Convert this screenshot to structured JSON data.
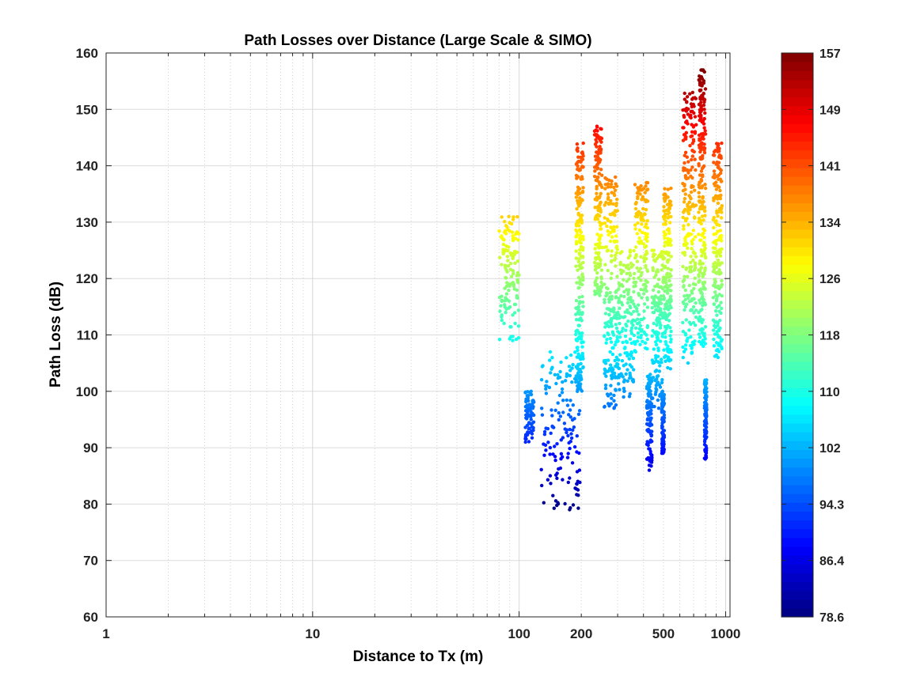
{
  "chart_data": {
    "type": "scatter",
    "title": "Path Losses over Distance (Large Scale & SIMO)",
    "xlabel": "Distance to Tx (m)",
    "ylabel": "Path Loss (dB)",
    "xscale": "log",
    "xlim": [
      1,
      1050
    ],
    "ylim": [
      60,
      160
    ],
    "grid": true,
    "x_ticks": [
      "1",
      "10",
      "100",
      "200",
      "500",
      "1000"
    ],
    "x_tick_values": [
      1,
      10,
      100,
      200,
      500,
      1000
    ],
    "y_ticks": [
      "60",
      "70",
      "80",
      "90",
      "100",
      "110",
      "120",
      "130",
      "140",
      "150",
      "160"
    ],
    "y_tick_values": [
      60,
      70,
      80,
      90,
      100,
      110,
      120,
      130,
      140,
      150,
      160
    ],
    "colorbar": {
      "colormap": "jet",
      "range": [
        78.6,
        157
      ],
      "position": "right",
      "ticks": [
        "157",
        "149",
        "141",
        "134",
        "126",
        "118",
        "110",
        "102",
        "94.3",
        "86.4",
        "78.6"
      ]
    },
    "point_color_by": "y",
    "clusters": [
      {
        "x": [
          80,
          100
        ],
        "y": [
          109,
          131
        ]
      },
      {
        "x": [
          107,
          118
        ],
        "y": [
          91,
          100
        ]
      },
      {
        "x": [
          128,
          200
        ],
        "y": [
          79,
          107
        ]
      },
      {
        "x": [
          188,
          205
        ],
        "y": [
          100,
          144
        ]
      },
      {
        "x": [
          232,
          252
        ],
        "y": [
          117,
          147
        ]
      },
      {
        "x": [
          258,
          300
        ],
        "y": [
          97,
          138
        ]
      },
      {
        "x": [
          300,
          360
        ],
        "y": [
          99,
          125
        ]
      },
      {
        "x": [
          360,
          420
        ],
        "y": [
          107,
          137
        ]
      },
      {
        "x": [
          415,
          440
        ],
        "y": [
          86,
          103
        ]
      },
      {
        "x": [
          440,
          500
        ],
        "y": [
          97,
          125
        ]
      },
      {
        "x": [
          490,
          505
        ],
        "y": [
          89,
          100
        ]
      },
      {
        "x": [
          500,
          545
        ],
        "y": [
          104,
          136
        ]
      },
      {
        "x": [
          620,
          720
        ],
        "y": [
          105,
          153
        ]
      },
      {
        "x": [
          740,
          800
        ],
        "y": [
          108,
          157
        ]
      },
      {
        "x": [
          790,
          810
        ],
        "y": [
          88,
          102
        ]
      },
      {
        "x": [
          870,
          960
        ],
        "y": [
          106,
          144
        ]
      }
    ]
  }
}
